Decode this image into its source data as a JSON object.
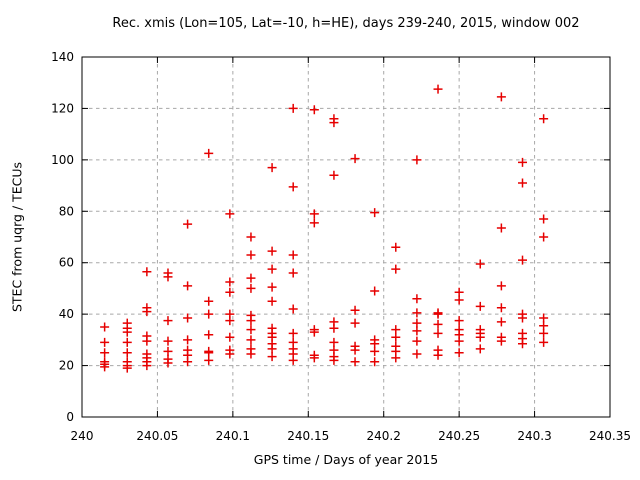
{
  "chart_data": {
    "type": "scatter",
    "title": "Rec. xmis (Lon=105, Lat=-10, h=HE), days 239-240, 2015, window 002",
    "xlabel": "GPS time / Days of year 2015",
    "ylabel": "STEC from uqrg / TECUs",
    "xlim": [
      240.0,
      240.35
    ],
    "ylim": [
      0,
      140
    ],
    "xticks": {
      "values": [
        240.0,
        240.05,
        240.1,
        240.15,
        240.2,
        240.25,
        240.3,
        240.35
      ],
      "labels": [
        "240",
        "240.05",
        "240.1",
        "240.15",
        "240.2",
        "240.25",
        "240.3",
        "240.35"
      ]
    },
    "yticks": {
      "values": [
        0,
        20,
        40,
        60,
        80,
        100,
        120,
        140
      ],
      "labels": [
        "0",
        "20",
        "40",
        "60",
        "80",
        "100",
        "120",
        "140"
      ]
    },
    "grid": true,
    "legend": "none",
    "marker": {
      "shape": "plus",
      "color": "#e60000",
      "size": 9
    },
    "series": [
      {
        "name": "STEC from uqrg",
        "epochs": [
          {
            "day": 240.015,
            "stec": [
              35,
              29,
              25,
              21.5,
              20.5,
              19.5
            ]
          },
          {
            "day": 240.03,
            "stec": [
              36.5,
              34.5,
              33,
              29,
              25,
              21.5,
              20,
              19
            ]
          },
          {
            "day": 240.043,
            "stec": [
              56.5,
              42.5,
              41,
              31.5,
              29.5,
              24.5,
              23,
              21.5,
              20
            ]
          },
          {
            "day": 240.057,
            "stec": [
              56,
              54.5,
              37.5,
              29.5,
              25.5,
              22.5,
              21
            ]
          },
          {
            "day": 240.07,
            "stec": [
              75,
              51,
              38.5,
              30,
              26,
              24,
              21.5
            ]
          },
          {
            "day": 240.084,
            "stec": [
              102.5,
              45,
              40,
              32,
              25.5,
              25,
              22
            ]
          },
          {
            "day": 240.098,
            "stec": [
              79,
              52.5,
              48.5,
              40,
              37.5,
              31,
              26,
              24.5
            ]
          },
          {
            "day": 240.112,
            "stec": [
              70,
              63,
              54,
              50,
              39.5,
              37.5,
              34,
              30,
              26.5,
              24.5
            ]
          },
          {
            "day": 240.126,
            "stec": [
              97,
              64.5,
              57.5,
              50.5,
              45,
              34.5,
              32.5,
              31,
              28.5,
              26.5,
              23.5
            ]
          },
          {
            "day": 240.14,
            "stec": [
              120,
              89.5,
              63,
              56,
              42,
              32.5,
              29,
              26.5,
              24.5,
              22
            ]
          },
          {
            "day": 240.154,
            "stec": [
              119.5,
              79,
              75.5,
              34,
              33,
              24,
              23
            ]
          },
          {
            "day": 240.167,
            "stec": [
              116,
              114.5,
              94,
              37,
              34.5,
              29,
              26,
              23.5,
              22
            ]
          },
          {
            "day": 240.181,
            "stec": [
              100.5,
              41.5,
              36.5,
              27.5,
              26,
              21.5
            ]
          },
          {
            "day": 240.194,
            "stec": [
              79.5,
              49,
              30,
              28.5,
              25.5,
              21.5
            ]
          },
          {
            "day": 240.208,
            "stec": [
              66,
              57.5,
              34,
              31,
              27.5,
              25.5,
              23
            ]
          },
          {
            "day": 240.222,
            "stec": [
              100,
              46,
              40.5,
              36.5,
              33.5,
              29.5,
              24.5
            ]
          },
          {
            "day": 240.236,
            "stec": [
              127.5,
              40.5,
              40,
              36,
              32.5,
              26,
              24
            ]
          },
          {
            "day": 240.25,
            "stec": [
              48.5,
              45.5,
              37.5,
              34,
              32,
              29.5,
              25
            ]
          },
          {
            "day": 240.264,
            "stec": [
              59.5,
              43,
              34,
              32.5,
              31,
              26.5
            ]
          },
          {
            "day": 240.278,
            "stec": [
              124.5,
              73.5,
              51,
              42.5,
              37,
              31,
              29.5
            ]
          },
          {
            "day": 240.292,
            "stec": [
              99,
              91,
              61,
              40,
              38.5,
              32.5,
              30.5,
              28.5
            ]
          },
          {
            "day": 240.306,
            "stec": [
              116,
              77,
              70,
              38.5,
              35.5,
              32.5,
              29
            ]
          }
        ]
      }
    ],
    "colors": {
      "grid": "#a8a8a8",
      "border": "#000000",
      "marker": "#e60000"
    }
  }
}
